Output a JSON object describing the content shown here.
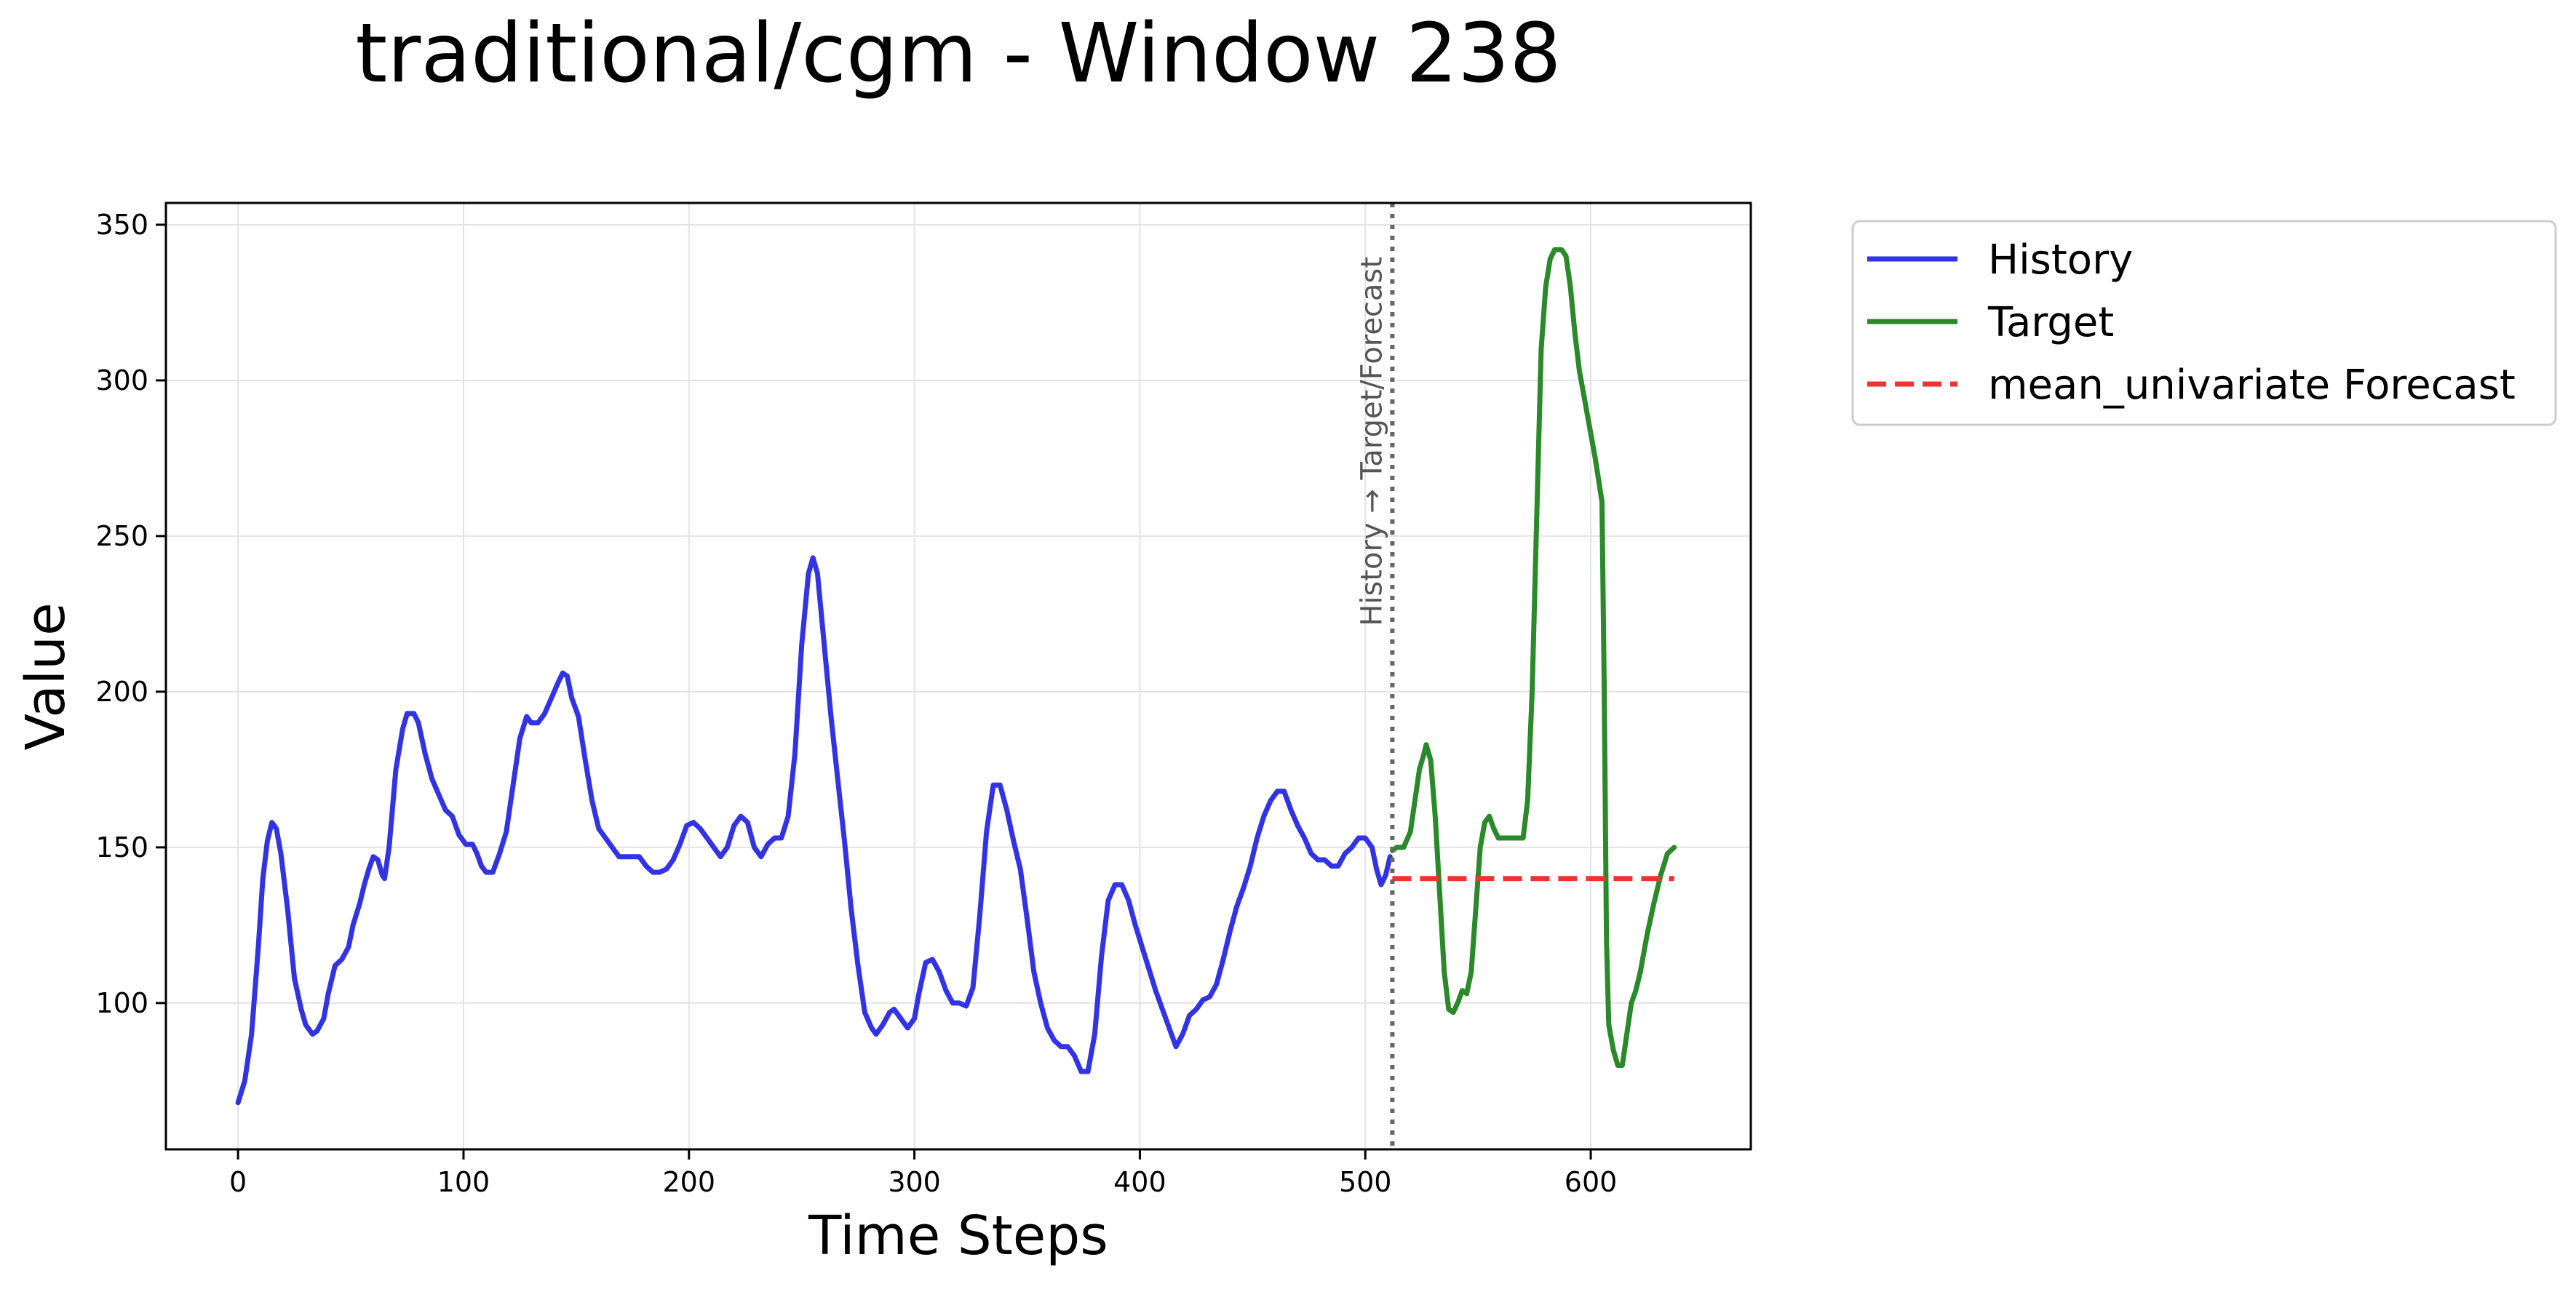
{
  "chart_data": {
    "type": "line",
    "title": "traditional/cgm - Window 238",
    "xlabel": "Time Steps",
    "ylabel": "Value",
    "xlim": [
      -32,
      671
    ],
    "ylim": [
      53,
      357
    ],
    "xticks": [
      0,
      100,
      200,
      300,
      400,
      500,
      600
    ],
    "yticks": [
      100,
      150,
      200,
      250,
      300,
      350
    ],
    "grid": true,
    "legend_position": "outside-top-right",
    "split_annotation": {
      "x": 512,
      "text": "History → Target/Forecast"
    },
    "series": [
      {
        "name": "History",
        "color": "#3333e6",
        "style": "solid",
        "points": [
          [
            0,
            68
          ],
          [
            3,
            75
          ],
          [
            6,
            90
          ],
          [
            9,
            118
          ],
          [
            11,
            140
          ],
          [
            13,
            152
          ],
          [
            15,
            158
          ],
          [
            17,
            156
          ],
          [
            19,
            148
          ],
          [
            22,
            130
          ],
          [
            25,
            108
          ],
          [
            28,
            98
          ],
          [
            30,
            93
          ],
          [
            33,
            90
          ],
          [
            35,
            91
          ],
          [
            38,
            95
          ],
          [
            40,
            103
          ],
          [
            43,
            112
          ],
          [
            46,
            114
          ],
          [
            49,
            118
          ],
          [
            51,
            125
          ],
          [
            54,
            132
          ],
          [
            56,
            138
          ],
          [
            58,
            143
          ],
          [
            60,
            147
          ],
          [
            62,
            146
          ],
          [
            64,
            141
          ],
          [
            65,
            140
          ],
          [
            67,
            150
          ],
          [
            70,
            175
          ],
          [
            73,
            188
          ],
          [
            75,
            193
          ],
          [
            78,
            193
          ],
          [
            80,
            190
          ],
          [
            83,
            180
          ],
          [
            86,
            172
          ],
          [
            89,
            167
          ],
          [
            92,
            162
          ],
          [
            95,
            160
          ],
          [
            98,
            154
          ],
          [
            101,
            151
          ],
          [
            104,
            151
          ],
          [
            106,
            148
          ],
          [
            108,
            144
          ],
          [
            110,
            142
          ],
          [
            113,
            142
          ],
          [
            116,
            148
          ],
          [
            119,
            155
          ],
          [
            122,
            170
          ],
          [
            125,
            185
          ],
          [
            128,
            192
          ],
          [
            130,
            190
          ],
          [
            133,
            190
          ],
          [
            136,
            193
          ],
          [
            139,
            198
          ],
          [
            142,
            203
          ],
          [
            144,
            206
          ],
          [
            146,
            205
          ],
          [
            148,
            198
          ],
          [
            151,
            192
          ],
          [
            154,
            178
          ],
          [
            157,
            165
          ],
          [
            160,
            156
          ],
          [
            163,
            153
          ],
          [
            166,
            150
          ],
          [
            169,
            147
          ],
          [
            172,
            147
          ],
          [
            175,
            147
          ],
          [
            178,
            147
          ],
          [
            181,
            144
          ],
          [
            184,
            142
          ],
          [
            187,
            142
          ],
          [
            190,
            143
          ],
          [
            193,
            146
          ],
          [
            196,
            151
          ],
          [
            199,
            157
          ],
          [
            202,
            158
          ],
          [
            205,
            156
          ],
          [
            208,
            153
          ],
          [
            211,
            150
          ],
          [
            214,
            147
          ],
          [
            217,
            150
          ],
          [
            220,
            157
          ],
          [
            223,
            160
          ],
          [
            226,
            158
          ],
          [
            229,
            150
          ],
          [
            232,
            147
          ],
          [
            235,
            151
          ],
          [
            238,
            153
          ],
          [
            241,
            153
          ],
          [
            244,
            160
          ],
          [
            247,
            180
          ],
          [
            250,
            215
          ],
          [
            253,
            238
          ],
          [
            255,
            243
          ],
          [
            257,
            238
          ],
          [
            260,
            215
          ],
          [
            263,
            192
          ],
          [
            266,
            172
          ],
          [
            269,
            152
          ],
          [
            272,
            130
          ],
          [
            275,
            112
          ],
          [
            278,
            97
          ],
          [
            281,
            92
          ],
          [
            283,
            90
          ],
          [
            286,
            93
          ],
          [
            289,
            97
          ],
          [
            291,
            98
          ],
          [
            294,
            95
          ],
          [
            297,
            92
          ],
          [
            300,
            95
          ],
          [
            302,
            103
          ],
          [
            305,
            113
          ],
          [
            308,
            114
          ],
          [
            311,
            110
          ],
          [
            314,
            104
          ],
          [
            317,
            100
          ],
          [
            320,
            100
          ],
          [
            323,
            99
          ],
          [
            326,
            105
          ],
          [
            329,
            128
          ],
          [
            332,
            155
          ],
          [
            335,
            170
          ],
          [
            338,
            170
          ],
          [
            341,
            162
          ],
          [
            344,
            152
          ],
          [
            347,
            143
          ],
          [
            350,
            127
          ],
          [
            353,
            110
          ],
          [
            356,
            100
          ],
          [
            359,
            92
          ],
          [
            362,
            88
          ],
          [
            365,
            86
          ],
          [
            368,
            86
          ],
          [
            371,
            83
          ],
          [
            374,
            78
          ],
          [
            377,
            78
          ],
          [
            380,
            90
          ],
          [
            383,
            115
          ],
          [
            386,
            133
          ],
          [
            389,
            138
          ],
          [
            392,
            138
          ],
          [
            395,
            133
          ],
          [
            398,
            125
          ],
          [
            401,
            118
          ],
          [
            404,
            111
          ],
          [
            407,
            104
          ],
          [
            410,
            98
          ],
          [
            413,
            92
          ],
          [
            416,
            86
          ],
          [
            419,
            90
          ],
          [
            422,
            96
          ],
          [
            425,
            98
          ],
          [
            428,
            101
          ],
          [
            431,
            102
          ],
          [
            434,
            106
          ],
          [
            437,
            114
          ],
          [
            440,
            123
          ],
          [
            443,
            131
          ],
          [
            446,
            137
          ],
          [
            449,
            144
          ],
          [
            452,
            153
          ],
          [
            455,
            160
          ],
          [
            458,
            165
          ],
          [
            461,
            168
          ],
          [
            464,
            168
          ],
          [
            467,
            162
          ],
          [
            470,
            157
          ],
          [
            473,
            153
          ],
          [
            476,
            148
          ],
          [
            479,
            146
          ],
          [
            482,
            146
          ],
          [
            485,
            144
          ],
          [
            488,
            144
          ],
          [
            491,
            148
          ],
          [
            494,
            150
          ],
          [
            497,
            153
          ],
          [
            500,
            153
          ],
          [
            503,
            150
          ],
          [
            505,
            143
          ],
          [
            507,
            138
          ],
          [
            509,
            141
          ],
          [
            511,
            147
          ]
        ]
      },
      {
        "name": "Target",
        "color": "#2a8a2a",
        "style": "solid",
        "points": [
          [
            512,
            149
          ],
          [
            514,
            150
          ],
          [
            517,
            150
          ],
          [
            520,
            155
          ],
          [
            522,
            165
          ],
          [
            524,
            175
          ],
          [
            526,
            180
          ],
          [
            527,
            183
          ],
          [
            529,
            178
          ],
          [
            531,
            160
          ],
          [
            533,
            135
          ],
          [
            535,
            110
          ],
          [
            537,
            98
          ],
          [
            539,
            97
          ],
          [
            541,
            100
          ],
          [
            543,
            104
          ],
          [
            545,
            103
          ],
          [
            547,
            110
          ],
          [
            549,
            130
          ],
          [
            551,
            150
          ],
          [
            553,
            158
          ],
          [
            555,
            160
          ],
          [
            557,
            156
          ],
          [
            559,
            153
          ],
          [
            562,
            153
          ],
          [
            565,
            153
          ],
          [
            568,
            153
          ],
          [
            570,
            153
          ],
          [
            572,
            165
          ],
          [
            574,
            200
          ],
          [
            576,
            255
          ],
          [
            578,
            310
          ],
          [
            580,
            330
          ],
          [
            582,
            339
          ],
          [
            584,
            342
          ],
          [
            587,
            342
          ],
          [
            589,
            340
          ],
          [
            591,
            330
          ],
          [
            593,
            315
          ],
          [
            595,
            303
          ],
          [
            597,
            295
          ],
          [
            599,
            287
          ],
          [
            602,
            275
          ],
          [
            605,
            261
          ],
          [
            606,
            200
          ],
          [
            607,
            120
          ],
          [
            608,
            93
          ],
          [
            610,
            85
          ],
          [
            612,
            80
          ],
          [
            614,
            80
          ],
          [
            616,
            90
          ],
          [
            618,
            100
          ],
          [
            620,
            104
          ],
          [
            622,
            110
          ],
          [
            625,
            122
          ],
          [
            628,
            132
          ],
          [
            631,
            141
          ],
          [
            634,
            148
          ],
          [
            637,
            150
          ]
        ]
      },
      {
        "name": "mean_univariate Forecast",
        "color": "#ee3333",
        "style": "dashed",
        "points": [
          [
            512,
            140
          ],
          [
            637,
            140
          ]
        ]
      }
    ]
  }
}
